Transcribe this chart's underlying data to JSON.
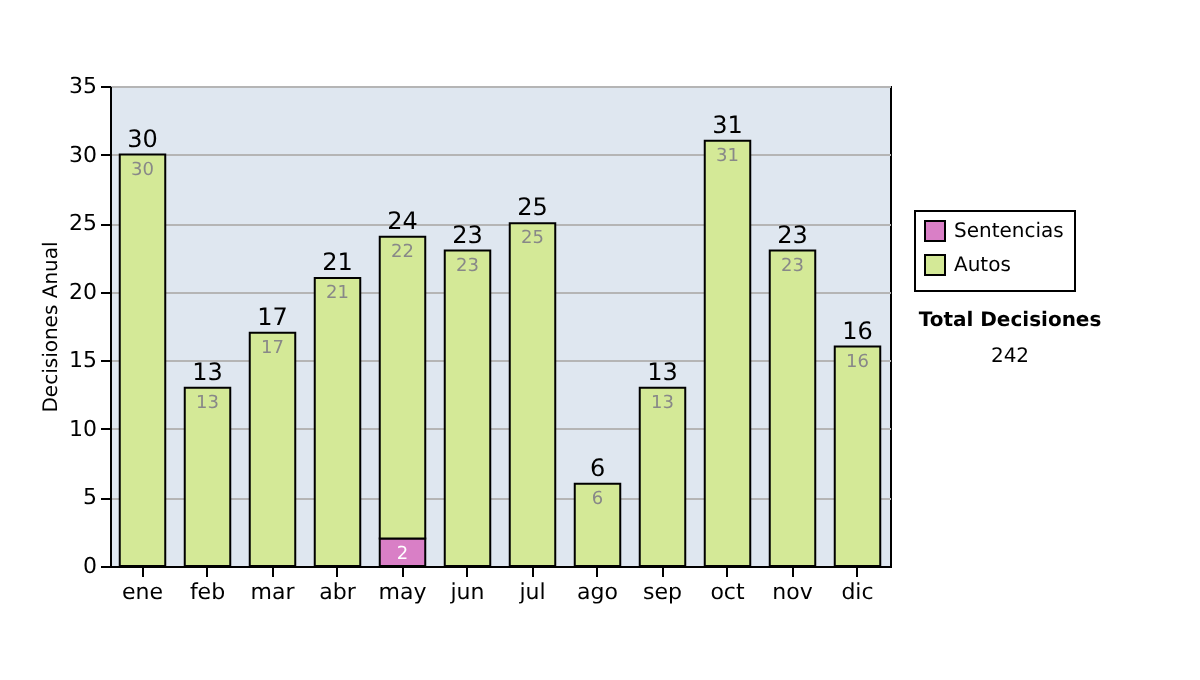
{
  "chart_data": {
    "type": "bar",
    "stacked": true,
    "ylabel": "Decisiones Anual",
    "categories": [
      "ene",
      "feb",
      "mar",
      "abr",
      "may",
      "jun",
      "jul",
      "ago",
      "sep",
      "oct",
      "nov",
      "dic"
    ],
    "series": [
      {
        "name": "Sentencias",
        "color": "#d97fc6",
        "values": [
          0,
          0,
          0,
          0,
          2,
          0,
          0,
          0,
          0,
          0,
          0,
          0
        ],
        "value_labels": [
          null,
          null,
          null,
          null,
          "2",
          null,
          null,
          null,
          null,
          null,
          null,
          null
        ]
      },
      {
        "name": "Autos",
        "color": "#d4e997",
        "values": [
          30,
          13,
          17,
          21,
          22,
          23,
          25,
          6,
          13,
          31,
          23,
          16
        ],
        "value_labels": [
          "30",
          "13",
          "17",
          "21",
          "22",
          "23",
          "25",
          "6",
          "13",
          "31",
          "23",
          "16"
        ]
      }
    ],
    "totals": [
      "30",
      "13",
      "17",
      "21",
      "24",
      "23",
      "25",
      "6",
      "13",
      "31",
      "23",
      "16"
    ],
    "ylim": [
      0,
      35
    ],
    "yticks": [
      0,
      5,
      10,
      15,
      20,
      25,
      30,
      35
    ],
    "grid": "y",
    "legend": "right",
    "annotations": [
      "Total Decisiones",
      "242"
    ]
  }
}
